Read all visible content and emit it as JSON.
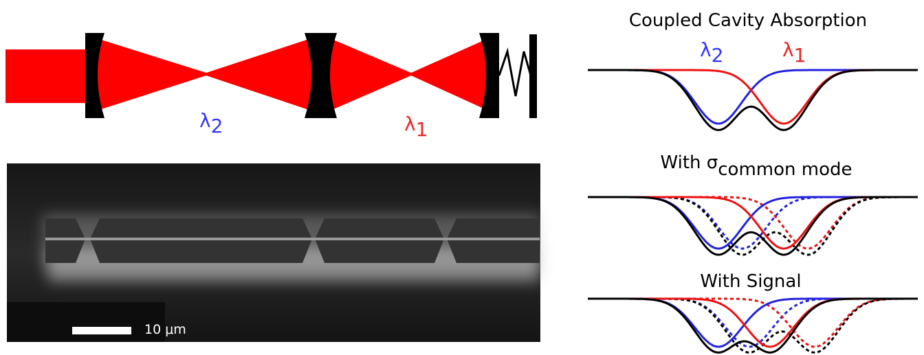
{
  "cavity_diagram": {
    "label_lambda2": {
      "symbol": "λ",
      "subscript": "2"
    },
    "label_lambda1": {
      "symbol": "λ",
      "subscript": "1"
    }
  },
  "sem_image": {
    "scale_bar_label": "10 μm"
  },
  "absorption_panels": [
    {
      "title": "Coupled Cavity Absorption",
      "label_lambda2": {
        "symbol": "λ",
        "subscript": "2"
      },
      "label_lambda1": {
        "symbol": "λ",
        "subscript": "1"
      }
    },
    {
      "title": {
        "text": "With σ",
        "subscript": "common mode"
      }
    },
    {
      "title": "With Signal"
    }
  ]
}
